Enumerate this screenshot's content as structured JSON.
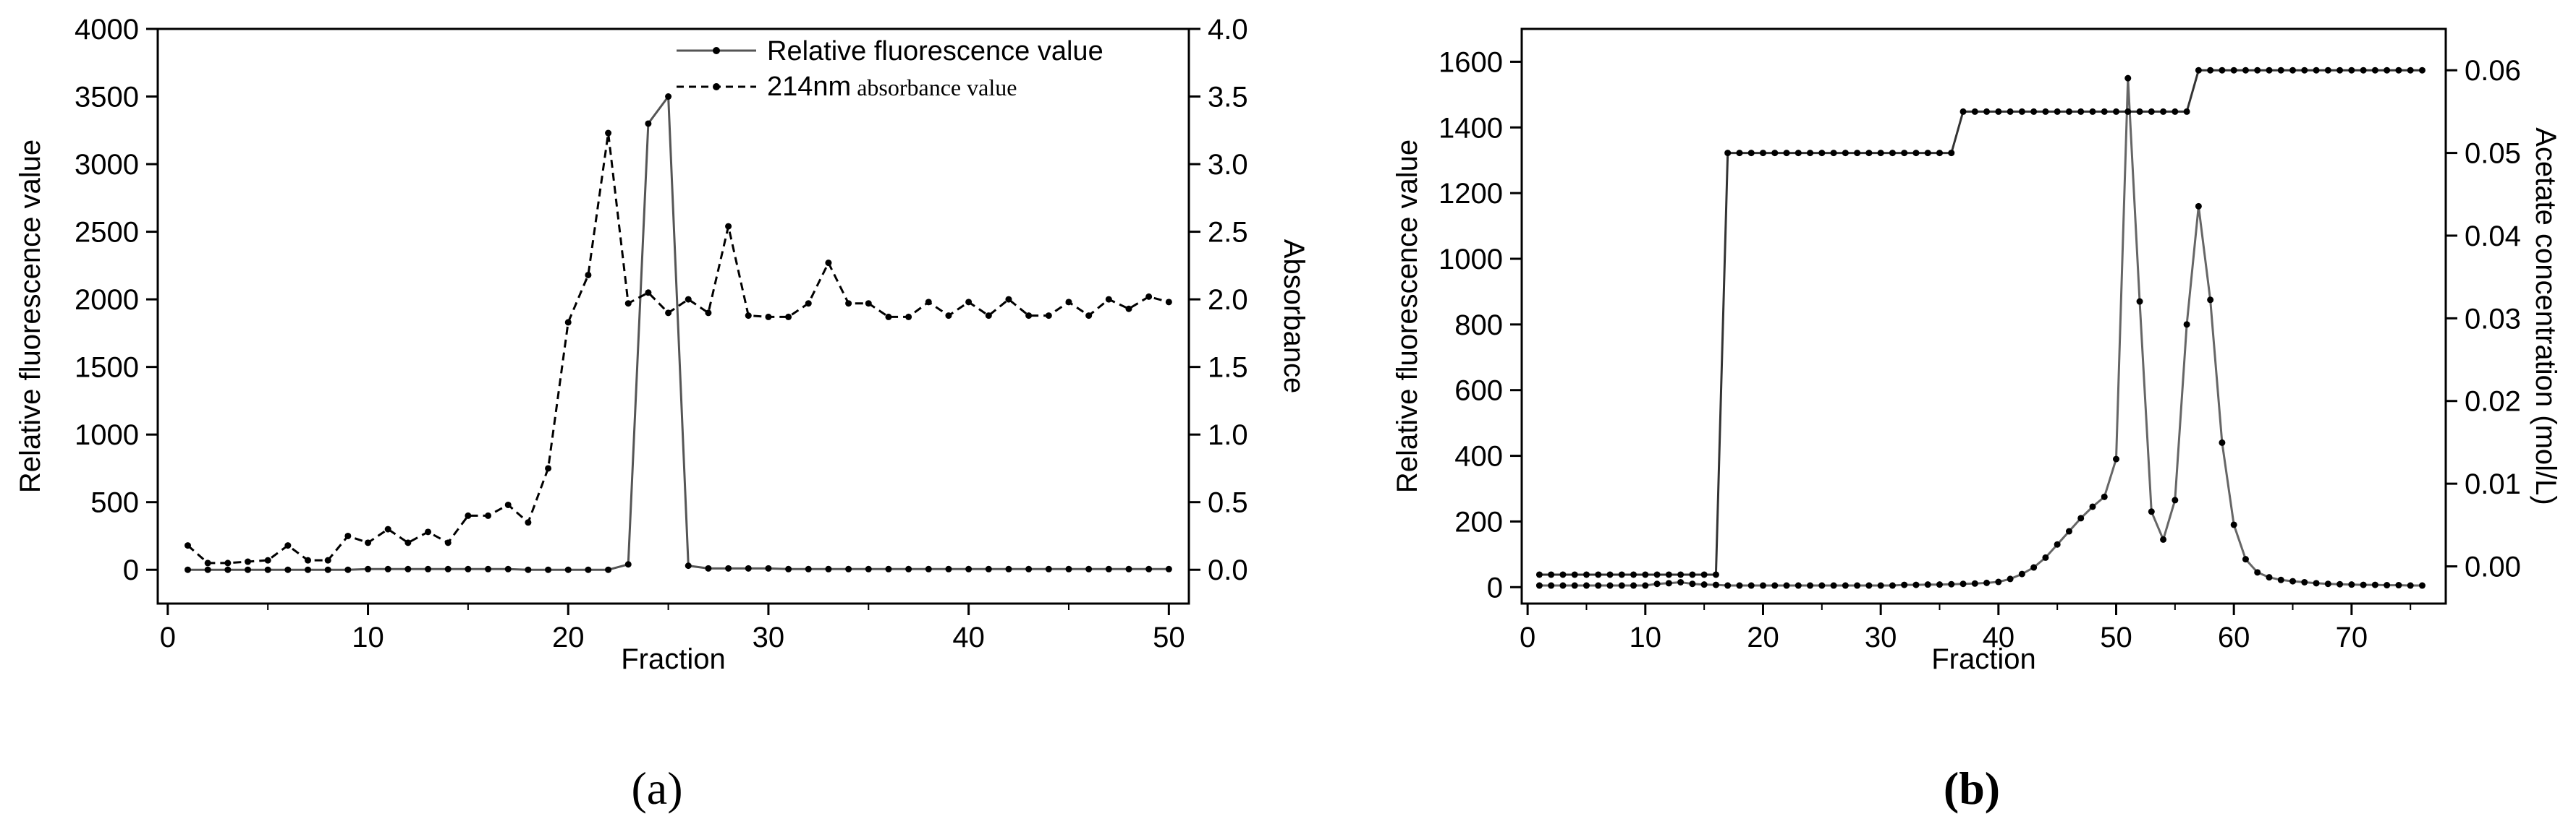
{
  "chart_data": [
    {
      "type": "line",
      "panel_label": "a",
      "xlabel": "Fraction",
      "ylabel_left": "Relative fluorescence value",
      "ylabel_right": "Absorbance",
      "xlim": [
        -0.5,
        51
      ],
      "ylim_left": [
        -250,
        4000
      ],
      "ylim_right": [
        -0.25,
        4.0
      ],
      "x_ticks": [
        0,
        10,
        20,
        30,
        40,
        50
      ],
      "y_ticks_left": [
        0,
        500,
        1000,
        1500,
        2000,
        2500,
        3000,
        3500,
        4000
      ],
      "y_ticks_right": [
        "0.0",
        "0.5",
        "1.0",
        "1.5",
        "2.0",
        "2.5",
        "3.0",
        "3.5",
        "4.0"
      ],
      "legend_position": "top-right",
      "grid": false,
      "series": [
        {
          "name": "Relative fluorescence value",
          "axis": "left",
          "style": "solid",
          "x": [
            1,
            2,
            3,
            4,
            5,
            6,
            7,
            8,
            9,
            10,
            11,
            12,
            13,
            14,
            15,
            16,
            17,
            18,
            19,
            20,
            21,
            22,
            23,
            24,
            25,
            26,
            27,
            28,
            29,
            30,
            31,
            32,
            33,
            34,
            35,
            36,
            37,
            38,
            39,
            40,
            41,
            42,
            43,
            44,
            45,
            46,
            47,
            48,
            49,
            50
          ],
          "y": [
            0,
            0,
            0,
            0,
            0,
            0,
            0,
            0,
            0,
            5,
            5,
            5,
            5,
            5,
            5,
            5,
            5,
            0,
            0,
            0,
            0,
            0,
            40,
            3300,
            3500,
            30,
            10,
            10,
            10,
            10,
            5,
            5,
            5,
            5,
            5,
            5,
            5,
            5,
            5,
            5,
            5,
            5,
            5,
            5,
            5,
            5,
            5,
            5,
            5,
            5
          ]
        },
        {
          "name_main": "214nm",
          "name_suffix": " absorbance value",
          "axis": "right",
          "style": "dashed",
          "x": [
            1,
            2,
            3,
            4,
            5,
            6,
            7,
            8,
            9,
            10,
            11,
            12,
            13,
            14,
            15,
            16,
            17,
            18,
            19,
            20,
            21,
            22,
            23,
            24,
            25,
            26,
            27,
            28,
            29,
            30,
            31,
            32,
            33,
            34,
            35,
            36,
            37,
            38,
            39,
            40,
            41,
            42,
            43,
            44,
            45,
            46,
            47,
            48,
            49,
            50
          ],
          "y": [
            0.18,
            0.05,
            0.05,
            0.06,
            0.07,
            0.18,
            0.07,
            0.07,
            0.25,
            0.2,
            0.3,
            0.2,
            0.28,
            0.2,
            0.4,
            0.4,
            0.48,
            0.35,
            0.75,
            1.83,
            2.18,
            3.23,
            1.97,
            2.05,
            1.9,
            2.0,
            1.9,
            2.54,
            1.88,
            1.87,
            1.87,
            1.97,
            2.27,
            1.97,
            1.97,
            1.87,
            1.87,
            1.98,
            1.88,
            1.98,
            1.88,
            2.0,
            1.88,
            1.88,
            1.98,
            1.88,
            2.0,
            1.93,
            2.02,
            1.98
          ]
        }
      ]
    },
    {
      "type": "line",
      "panel_label": "b",
      "xlabel": "Fraction",
      "ylabel_left": "Relative fluorescence value",
      "ylabel_right": "Acetate concentration (mol/L)",
      "xlim": [
        -0.5,
        78
      ],
      "ylim_left": [
        -50,
        1700
      ],
      "ylim_right": [
        -0.0045,
        0.065
      ],
      "x_ticks": [
        0,
        10,
        20,
        30,
        40,
        50,
        60,
        70
      ],
      "y_ticks_left": [
        0,
        200,
        400,
        600,
        800,
        1000,
        1200,
        1400,
        1600
      ],
      "y_ticks_right_values": [
        0.0,
        0.01,
        0.02,
        0.03,
        0.04,
        0.05,
        0.06
      ],
      "y_ticks_right": [
        "0.00",
        "0.01",
        "0.02",
        "0.03",
        "0.04",
        "0.05",
        "0.06"
      ],
      "grid": false,
      "series": [
        {
          "axis": "left",
          "style": "solid",
          "color": "#666666",
          "x": [
            1,
            2,
            3,
            4,
            5,
            6,
            7,
            8,
            9,
            10,
            11,
            12,
            13,
            14,
            15,
            16,
            17,
            18,
            19,
            20,
            21,
            22,
            23,
            24,
            25,
            26,
            27,
            28,
            29,
            30,
            31,
            32,
            33,
            34,
            35,
            36,
            37,
            38,
            39,
            40,
            41,
            42,
            43,
            44,
            45,
            46,
            47,
            48,
            49,
            50,
            51,
            52,
            53,
            54,
            55,
            56,
            57,
            58,
            59,
            60,
            61,
            62,
            63,
            64,
            65,
            66,
            67,
            68,
            69,
            70,
            71,
            72,
            73,
            74,
            75,
            76
          ],
          "y": [
            5,
            5,
            5,
            5,
            5,
            5,
            5,
            5,
            5,
            5,
            10,
            12,
            15,
            10,
            8,
            7,
            5,
            5,
            5,
            5,
            5,
            5,
            5,
            5,
            5,
            5,
            5,
            5,
            5,
            5,
            5,
            7,
            7,
            8,
            8,
            9,
            10,
            11,
            13,
            16,
            25,
            40,
            60,
            90,
            130,
            170,
            210,
            245,
            275,
            390,
            1550,
            870,
            230,
            145,
            265,
            800,
            1160,
            875,
            440,
            190,
            85,
            45,
            30,
            22,
            18,
            15,
            12,
            10,
            9,
            8,
            7,
            7,
            6,
            6,
            5,
            5
          ]
        },
        {
          "axis": "right",
          "style": "solid",
          "color": "#333333",
          "x": [
            1,
            2,
            3,
            4,
            5,
            6,
            7,
            8,
            9,
            10,
            11,
            12,
            13,
            14,
            15,
            16,
            17,
            18,
            19,
            20,
            21,
            22,
            23,
            24,
            25,
            26,
            27,
            28,
            29,
            30,
            31,
            32,
            33,
            34,
            35,
            36,
            37,
            38,
            39,
            40,
            41,
            42,
            43,
            44,
            45,
            46,
            47,
            48,
            49,
            50,
            51,
            52,
            53,
            54,
            55,
            56,
            57,
            58,
            59,
            60,
            61,
            62,
            63,
            64,
            65,
            66,
            67,
            68,
            69,
            70,
            71,
            72,
            73,
            74,
            75,
            76
          ],
          "y": [
            -0.001,
            -0.001,
            -0.001,
            -0.001,
            -0.001,
            -0.001,
            -0.001,
            -0.001,
            -0.001,
            -0.001,
            -0.001,
            -0.001,
            -0.001,
            -0.001,
            -0.001,
            -0.001,
            0.05,
            0.05,
            0.05,
            0.05,
            0.05,
            0.05,
            0.05,
            0.05,
            0.05,
            0.05,
            0.05,
            0.05,
            0.05,
            0.05,
            0.05,
            0.05,
            0.05,
            0.05,
            0.05,
            0.05,
            0.055,
            0.055,
            0.055,
            0.055,
            0.055,
            0.055,
            0.055,
            0.055,
            0.055,
            0.055,
            0.055,
            0.055,
            0.055,
            0.055,
            0.055,
            0.055,
            0.055,
            0.055,
            0.055,
            0.055,
            0.06,
            0.06,
            0.06,
            0.06,
            0.06,
            0.06,
            0.06,
            0.06,
            0.06,
            0.06,
            0.06,
            0.06,
            0.06,
            0.06,
            0.06,
            0.06,
            0.06,
            0.06,
            0.06,
            0.06
          ]
        }
      ]
    }
  ]
}
